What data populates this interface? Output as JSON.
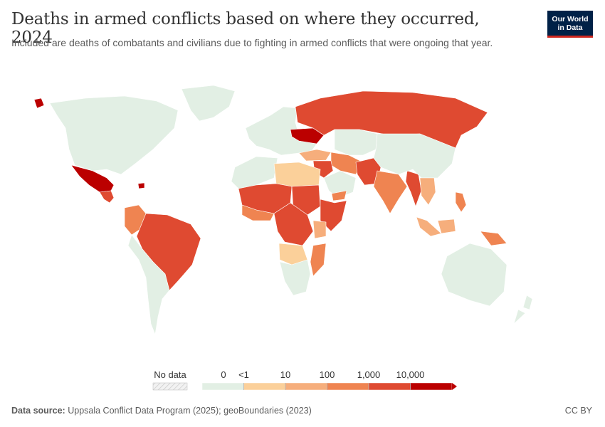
{
  "header": {
    "title": "Deaths in armed conflicts based on where they occurred, 2024",
    "subtitle": "Included are deaths of combatants and civilians due to fighting in armed conflicts that were ongoing that year."
  },
  "logo": {
    "line1": "Our World",
    "line2": "in Data"
  },
  "colors": {
    "zero": "#e2efe4",
    "lt1": "#fbd09a",
    "r10": "#f6ae7c",
    "r100": "#ef8451",
    "r1000": "#df4a31",
    "r10000": "#bb0000",
    "nodata_fill": "#f0f0f0",
    "border": "#ffffff",
    "logo_bg": "#002147",
    "logo_accent": "#ce261e"
  },
  "legend": {
    "no_data_label": "No data",
    "bins": [
      {
        "label": "0",
        "color_key": "zero"
      },
      {
        "label": "<1",
        "color_key": "lt1"
      },
      {
        "label": "10",
        "color_key": "r10"
      },
      {
        "label": "100",
        "color_key": "r100"
      },
      {
        "label": "1,000",
        "color_key": "r1000"
      },
      {
        "label": "10,000",
        "color_key": "r10000"
      }
    ]
  },
  "footer": {
    "source_label": "Data source:",
    "source_text": "Uppsala Conflict Data Program (2025); geoBoundaries (2023)",
    "license": "CC BY"
  },
  "map_regions": [
    {
      "name": "north-america",
      "bin": "zero"
    },
    {
      "name": "greenland",
      "bin": "zero"
    },
    {
      "name": "alaska-tip",
      "bin": "r10000"
    },
    {
      "name": "mexico",
      "bin": "r10000"
    },
    {
      "name": "central-america",
      "bin": "r1000"
    },
    {
      "name": "haiti",
      "bin": "r10000"
    },
    {
      "name": "colombia",
      "bin": "r100"
    },
    {
      "name": "brazil",
      "bin": "r1000"
    },
    {
      "name": "south-america-rest",
      "bin": "zero"
    },
    {
      "name": "europe",
      "bin": "zero"
    },
    {
      "name": "ukraine",
      "bin": "r10000"
    },
    {
      "name": "russia",
      "bin": "r1000"
    },
    {
      "name": "turkey",
      "bin": "r10"
    },
    {
      "name": "middle-east",
      "bin": "r100"
    },
    {
      "name": "syria-iraq",
      "bin": "r1000"
    },
    {
      "name": "arabian-peninsula",
      "bin": "zero"
    },
    {
      "name": "yemen",
      "bin": "r100"
    },
    {
      "name": "afghanistan-pakistan",
      "bin": "r1000"
    },
    {
      "name": "india",
      "bin": "r100"
    },
    {
      "name": "myanmar",
      "bin": "r1000"
    },
    {
      "name": "central-asia",
      "bin": "zero"
    },
    {
      "name": "china",
      "bin": "zero"
    },
    {
      "name": "southeast-asia",
      "bin": "r10"
    },
    {
      "name": "philippines",
      "bin": "r100"
    },
    {
      "name": "indonesia",
      "bin": "r10"
    },
    {
      "name": "papua",
      "bin": "r100"
    },
    {
      "name": "north-africa",
      "bin": "zero"
    },
    {
      "name": "libya-egypt",
      "bin": "lt1"
    },
    {
      "name": "sahel",
      "bin": "r1000"
    },
    {
      "name": "sudan",
      "bin": "r1000"
    },
    {
      "name": "ethiopia-somalia",
      "bin": "r1000"
    },
    {
      "name": "west-africa",
      "bin": "r100"
    },
    {
      "name": "central-africa",
      "bin": "r1000"
    },
    {
      "name": "kenya",
      "bin": "r10"
    },
    {
      "name": "angola-zambia",
      "bin": "lt1"
    },
    {
      "name": "mozambique",
      "bin": "r100"
    },
    {
      "name": "southern-africa",
      "bin": "zero"
    },
    {
      "name": "australia",
      "bin": "zero"
    },
    {
      "name": "new-zealand",
      "bin": "zero"
    }
  ]
}
